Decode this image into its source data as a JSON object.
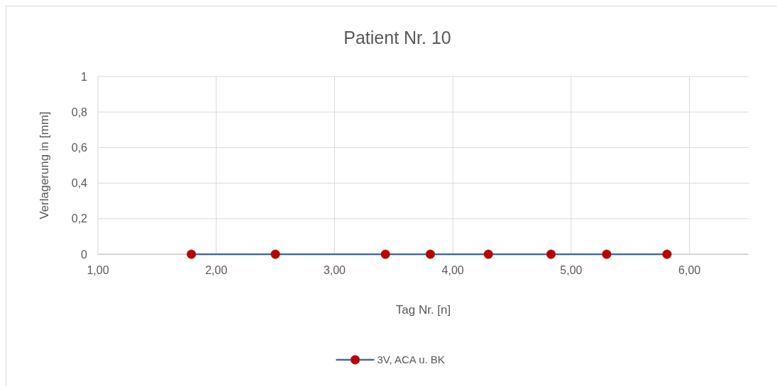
{
  "chart_data": {
    "type": "line",
    "title": "Patient Nr. 10",
    "xlabel": "Tag Nr. [n]",
    "ylabel": "Verlagerung in [mm]",
    "series": [
      {
        "name": "3V, ACA u. BK",
        "color": "#3f6f9f",
        "colors": [
          "#c00000",
          "#c00000",
          "#c00000",
          "#c00000",
          "#c00000",
          "#c00000",
          "#c00000",
          "#c00000"
        ],
        "x": [
          1.79,
          2.5,
          3.43,
          3.81,
          4.3,
          4.83,
          5.3,
          5.81
        ],
        "values": [
          0,
          0,
          0,
          0,
          0,
          0,
          0,
          0
        ]
      }
    ],
    "xlim": [
      1,
      6.5
    ],
    "xticks": [
      {
        "value": 1,
        "label": "1,00"
      },
      {
        "value": 2,
        "label": "2,00"
      },
      {
        "value": 3,
        "label": "3,00"
      },
      {
        "value": 4,
        "label": "4,00"
      },
      {
        "value": 5,
        "label": "5,00"
      },
      {
        "value": 6,
        "label": "6,00"
      }
    ],
    "ylim": [
      0,
      1
    ],
    "yticks": [
      0,
      {
        "value": 0.2,
        "label": "0,2"
      },
      {
        "value": 0.4,
        "label": "0,4"
      },
      {
        "value": 0.6,
        "label": "0,6"
      },
      {
        "value": 0.8,
        "label": "0,8"
      },
      1
    ],
    "grid": true,
    "legend": "bottom",
    "marker": "circle"
  }
}
